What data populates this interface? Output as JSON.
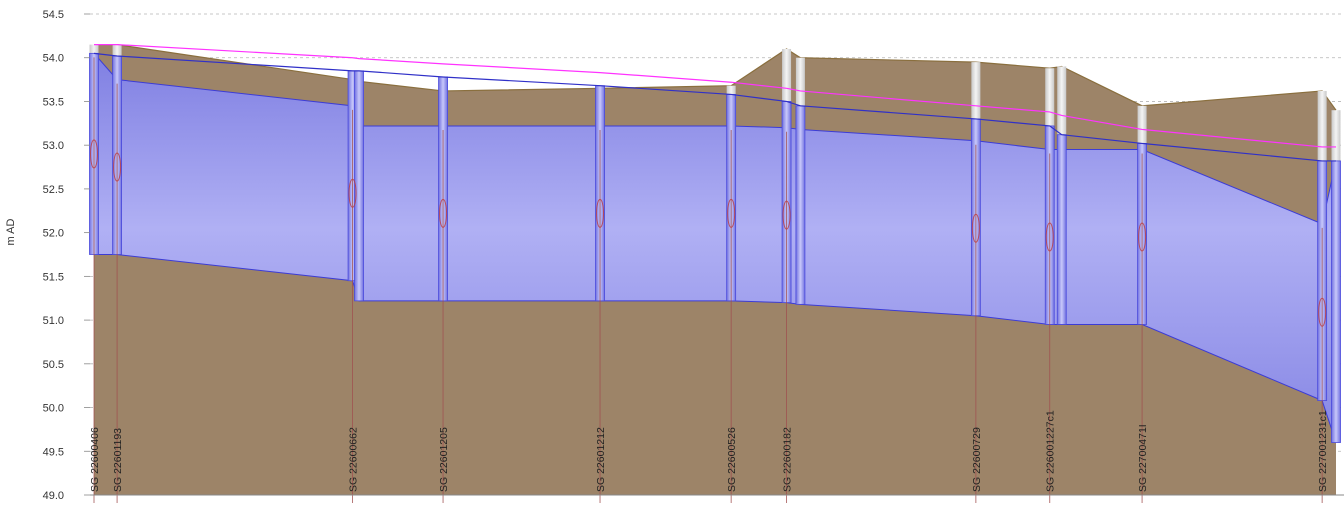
{
  "chart_data": {
    "type": "area",
    "title": "",
    "ylabel": "m AD",
    "ylim": [
      49.0,
      54.5
    ],
    "yticks": [
      "54.5",
      "54.0",
      "53.5",
      "53.0",
      "52.5",
      "52.0",
      "51.5",
      "51.0",
      "50.5",
      "50.0",
      "49.5",
      "49.0"
    ],
    "grid": "horizontal dashed",
    "colors": {
      "ground": "#9d8468",
      "ground_edge": "#8a6f3e",
      "pipe_fill": "#a6a6ee",
      "pipe_edge": "#3c3cd6",
      "hydraulic_grade_line": "#3030c8",
      "energy_line": "#ff33ff",
      "chamber_fill": "#e6e6e6",
      "node_line": "#a05050"
    },
    "nodes": [
      {
        "id": "SG 22600406",
        "chainage": 0,
        "ground_level": 54.15,
        "soffit": 54.05,
        "invert": 51.75,
        "water_level": 54.05,
        "energy_level": 54.15
      },
      {
        "id": "SG 22601193",
        "chainage": 25,
        "ground_level": 54.15,
        "soffit": 53.75,
        "invert": 51.75,
        "water_level": 54.02,
        "energy_level": 54.15
      },
      {
        "id": "SG 22600662",
        "chainage": 280,
        "ground_level": 53.75,
        "soffit": 53.45,
        "invert": 51.45,
        "water_level": 53.85,
        "energy_level": 54.0
      },
      {
        "id": "SG 22600662 d",
        "chainage": 287,
        "ground_level": 53.73,
        "soffit": 53.22,
        "invert": 51.22,
        "water_level": 53.85,
        "energy_level": 53.99
      },
      {
        "id": "SG 22601205",
        "chainage": 378,
        "ground_level": 53.62,
        "soffit": 53.22,
        "invert": 51.22,
        "water_level": 53.78,
        "energy_level": 53.93
      },
      {
        "id": "SG 22601212",
        "chainage": 548,
        "ground_level": 53.65,
        "soffit": 53.22,
        "invert": 51.22,
        "water_level": 53.68,
        "energy_level": 53.83
      },
      {
        "id": "SG 22600526",
        "chainage": 690,
        "ground_level": 53.68,
        "soffit": 53.22,
        "invert": 51.22,
        "water_level": 53.58,
        "energy_level": 53.72
      },
      {
        "id": "SG 22600182",
        "chainage": 750,
        "ground_level": 54.1,
        "soffit": 53.2,
        "invert": 51.2,
        "water_level": 53.5,
        "energy_level": 53.65
      },
      {
        "id": "SG 22600182 d",
        "chainage": 765,
        "ground_level": 54.0,
        "soffit": 53.18,
        "invert": 51.18,
        "water_level": 53.45,
        "energy_level": 53.62
      },
      {
        "id": "SG 22600729",
        "chainage": 955,
        "ground_level": 53.95,
        "soffit": 53.05,
        "invert": 51.05,
        "water_level": 53.3,
        "energy_level": 53.45
      },
      {
        "id": "SG 226001227c1",
        "chainage": 1035,
        "ground_level": 53.88,
        "soffit": 52.95,
        "invert": 50.95,
        "water_level": 53.22,
        "energy_level": 53.38
      },
      {
        "id": "SG 226001227c1 d",
        "chainage": 1048,
        "ground_level": 53.9,
        "soffit": 52.95,
        "invert": 50.95,
        "water_level": 53.12,
        "energy_level": 53.34
      },
      {
        "id": "SG 22700471I",
        "chainage": 1135,
        "ground_level": 53.45,
        "soffit": 52.95,
        "invert": 50.95,
        "water_level": 53.02,
        "energy_level": 53.18
      },
      {
        "id": "SG 227001231c1",
        "chainage": 1330,
        "ground_level": 53.62,
        "soffit": 52.1,
        "invert": 50.08,
        "water_level": 52.82,
        "energy_level": 52.98
      },
      {
        "id": "SG 227001231c1 d",
        "chainage": 1345,
        "ground_level": 53.4,
        "soffit": 52.82,
        "invert": 49.6,
        "water_level": 52.82,
        "energy_level": 52.98
      }
    ],
    "labels": [
      {
        "text": "SG 22600406",
        "chainage": 0
      },
      {
        "text": "SG 22601193",
        "chainage": 25
      },
      {
        "text": "SG 22600662",
        "chainage": 280
      },
      {
        "text": "SG 22601205",
        "chainage": 378
      },
      {
        "text": "SG 22601212",
        "chainage": 548
      },
      {
        "text": "SG 22600526",
        "chainage": 690
      },
      {
        "text": "SG 22600182",
        "chainage": 750
      },
      {
        "text": "SG 22600729",
        "chainage": 955
      },
      {
        "text": "SG 226001227c1",
        "chainage": 1035
      },
      {
        "text": "SG 22700471I",
        "chainage": 1135
      },
      {
        "text": "SG 227001231c1",
        "chainage": 1330
      }
    ]
  }
}
